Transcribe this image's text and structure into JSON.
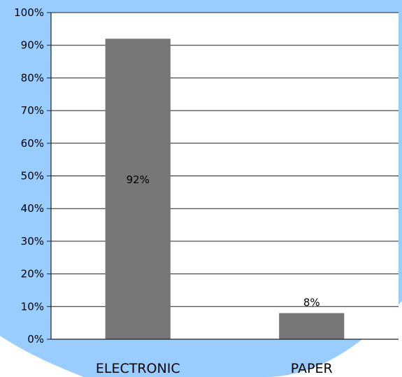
{
  "chart_data": {
    "type": "bar",
    "categories": [
      "ELECTRONIC",
      "PAPER"
    ],
    "values": [
      92,
      8
    ],
    "data_labels": [
      "92%",
      "8%"
    ],
    "title": "",
    "xlabel": "",
    "ylabel": "",
    "ylim": [
      0,
      100
    ],
    "y_ticks": [
      0,
      10,
      20,
      30,
      40,
      50,
      60,
      70,
      80,
      90,
      100
    ],
    "y_tick_labels": [
      "0%",
      "10%",
      "20%",
      "30%",
      "40%",
      "50%",
      "60%",
      "70%",
      "80%",
      "90%",
      "100%"
    ],
    "grid": true,
    "legend": "none",
    "colors": {
      "bar": "#777777",
      "background_shape": "#99ccff",
      "plot_background": "#ffffff",
      "grid": "#222222",
      "axis": "#222222"
    }
  }
}
